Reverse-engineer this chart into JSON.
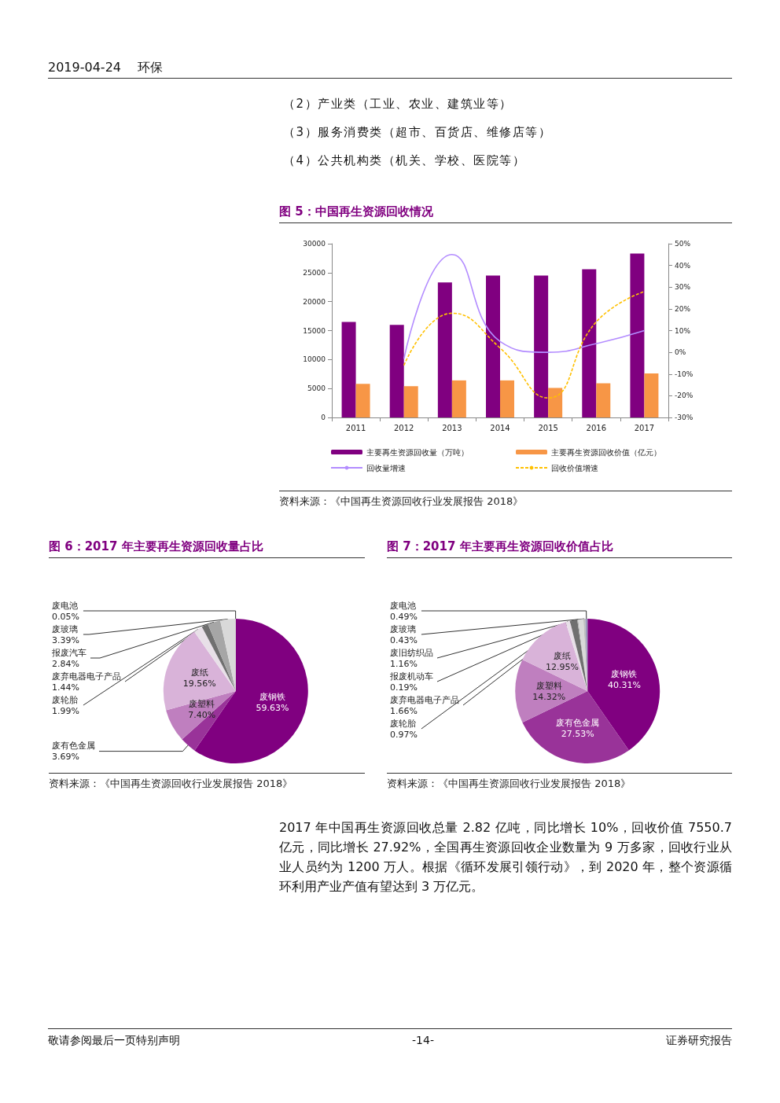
{
  "chart_data": [
    {
      "type": "bar",
      "title": "图 5：中国再生资源回收情况",
      "categories": [
        "2011",
        "2012",
        "2013",
        "2014",
        "2015",
        "2016",
        "2017"
      ],
      "series": [
        {
          "name": "主要再生资源回收量（万吨）",
          "color": "#800080",
          "values": [
            16500,
            16000,
            23300,
            24500,
            24500,
            25600,
            28300
          ]
        },
        {
          "name": "主要再生资源回收价值（亿元）",
          "color": "#f79646",
          "values": [
            5800,
            5400,
            6400,
            6400,
            5100,
            5900,
            7600
          ]
        },
        {
          "name": "回收量增速",
          "type": "line",
          "axis": "y2",
          "color": "#b38cff",
          "line_style": "solid",
          "values": [
            null,
            -3,
            45,
            5,
            0,
            4,
            10
          ]
        },
        {
          "name": "回收价值增速",
          "type": "line",
          "axis": "y2",
          "color": "#ffc000",
          "line_style": "dashed",
          "values": [
            null,
            -6,
            18,
            2,
            -21,
            14,
            28
          ]
        }
      ],
      "ylim": [
        0,
        30000
      ],
      "yticks": [
        0,
        5000,
        10000,
        15000,
        20000,
        25000,
        30000
      ],
      "y2lim": [
        -30,
        50
      ],
      "y2ticks": [
        {
          "value": -30,
          "label": "-30%"
        },
        {
          "value": -20,
          "label": "-20%"
        },
        {
          "value": -10,
          "label": "-10%"
        },
        {
          "value": 0,
          "label": "0%"
        },
        {
          "value": 10,
          "label": "10%"
        },
        {
          "value": 20,
          "label": "20%"
        },
        {
          "value": 30,
          "label": "30%"
        },
        {
          "value": 40,
          "label": "40%"
        },
        {
          "value": 50,
          "label": "50%"
        }
      ],
      "legend": "bottom",
      "marker": "none",
      "annotations": [
        "2019-04-24",
        "环保",
        "（2）产业类（工业、农业、建筑业等）",
        "（3）服务消费类（超市、百货店、维修店等）",
        "（4）公共机构类（机关、学校、医院等）",
        "资料来源：《中国再生资源回收行业发展报告 2018》"
      ]
    },
    {
      "type": "pie",
      "title": "图 6：2017 年主要再生资源回收量占比",
      "categories": [
        "废钢铁",
        "废有色金属",
        "废塑料",
        "废纸",
        "废轮胎",
        "废弃电器电子产品",
        "报废汽车",
        "废玻璃",
        "废电池"
      ],
      "values": [
        59.63,
        3.69,
        7.4,
        19.56,
        1.99,
        1.44,
        2.84,
        3.39,
        0.05
      ],
      "value_labels": [
        "59.63%",
        "3.69%",
        "7.40%",
        "19.56%",
        "1.99%",
        "1.44%",
        "2.84%",
        "3.39%",
        "0.05%"
      ],
      "colors": [
        "#800080",
        "#993399",
        "#bf7fbf",
        "#d9b3d9",
        "#e8e0e8",
        "#707070",
        "#a6a6a6",
        "#d9d9d9",
        "#bfbfbf"
      ],
      "annotations": [
        "资料来源：《中国再生资源回收行业发展报告 2018》"
      ]
    },
    {
      "type": "pie",
      "title": "图 7：2017 年主要再生资源回收价值占比",
      "categories": [
        "废钢铁",
        "废有色金属",
        "废塑料",
        "废纸",
        "废轮胎",
        "废弃电器电子产品",
        "报废机动车",
        "废旧纺织品",
        "废玻璃",
        "废电池"
      ],
      "values": [
        40.31,
        27.53,
        14.32,
        12.95,
        0.97,
        1.66,
        0.19,
        1.16,
        0.43,
        0.49
      ],
      "value_labels": [
        "40.31%",
        "27.53%",
        "14.32%",
        "12.95%",
        "0.97%",
        "1.66%",
        "0.19%",
        "1.16%",
        "0.43%",
        "0.49%"
      ],
      "colors": [
        "#800080",
        "#993399",
        "#bf7fbf",
        "#d9b3d9",
        "#e8e0e8",
        "#707070",
        "#a6a6a6",
        "#d9d9d9",
        "#bfbfbf",
        "#9999bb"
      ],
      "annotations": [
        "资料来源：《中国再生资源回收行业发展报告 2018》",
        "2017 年中国再生资源回收总量 2.82 亿吨，同比增长 10%，回收价值 7550.7 亿元，同比增长 27.92%，全国再生资源回收企业数量为 9 万多家，回收行业从业人员约为 1200 万人。根据《循环发展引领行动》，到 2020 年，整个资源循环利用产业产值有望达到 3 万亿元。",
        "敬请参阅最后一页特别声明",
        "-14-",
        "证券研究报告"
      ]
    }
  ]
}
